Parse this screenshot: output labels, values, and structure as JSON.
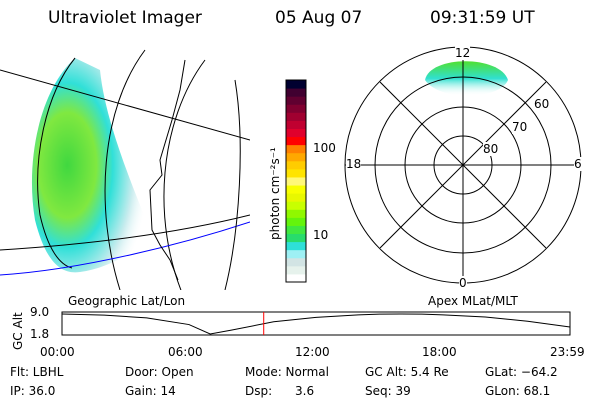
{
  "header": {
    "instrument": "Ultraviolet Imager",
    "date": "05 Aug 07",
    "time": "09:31:59 UT"
  },
  "colorbar": {
    "label": "photon cm⁻²s⁻¹",
    "ticks": [
      "100",
      "10"
    ],
    "colors": [
      "#ffffff",
      "#e6f2ec",
      "#d2e4e4",
      "#9ef0f4",
      "#2ee0d8",
      "#28dc6c",
      "#40e840",
      "#64f40c",
      "#90f800",
      "#c8ff00",
      "#e8f800",
      "#f8ff00",
      "#fff878",
      "#ffe400",
      "#ffcc00",
      "#ffa800",
      "#ff8000",
      "#ff0000",
      "#e0002c",
      "#c00030",
      "#a00030",
      "#800030",
      "#600030",
      "#400030",
      "#000030"
    ]
  },
  "map_panel": {
    "label": "Geographic Lat/Lon"
  },
  "polar_panel": {
    "label": "Apex MLat/MLT",
    "mlt_labels": [
      "12",
      "18",
      "6",
      "0"
    ],
    "mlat_labels": [
      "60",
      "70",
      "80"
    ]
  },
  "timeline": {
    "ylabel": "GC Alt",
    "yticks": [
      "9.0",
      "1.8"
    ],
    "xticks": [
      "00:00",
      "06:00",
      "12:00",
      "18:00",
      "23:59"
    ],
    "current_time_hours": 9.53,
    "altitude_curve": {
      "hours": [
        0,
        2,
        4,
        6,
        7,
        8,
        10,
        12,
        14,
        15,
        16,
        17,
        18,
        20,
        22,
        24
      ],
      "re": [
        9.0,
        8.6,
        7.6,
        5.2,
        1.8,
        3.2,
        6.2,
        7.8,
        8.7,
        8.95,
        9.0,
        8.95,
        8.7,
        7.9,
        6.4,
        4.3
      ]
    },
    "ylim": [
      1.8,
      9.0
    ]
  },
  "status": {
    "filter": "Flt: LBHL",
    "ip": "IP: 36.0",
    "door": "Door: Open",
    "gain": "Gain: 14",
    "mode": "Mode: Normal",
    "dsp_label": "Dsp:",
    "dsp_value": "3.6",
    "gc_alt": "GC Alt: 5.4 Re",
    "seq": "Seq: 39",
    "glat": "GLat: −64.2",
    "glon": "GLon:  68.1"
  },
  "colors": {
    "current_time_marker": "#ff0000",
    "map_line": "#0000ff"
  }
}
